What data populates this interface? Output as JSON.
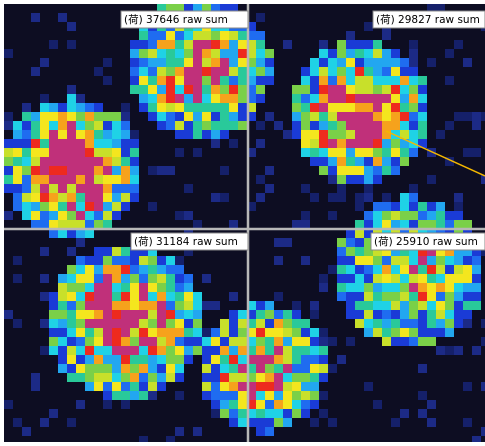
{
  "panels": [
    {
      "label": "(荷) 37646 raw sum"
    },
    {
      "label": "(荷) 29827 raw sum"
    },
    {
      "label": "(荷) 31184 raw sum"
    },
    {
      "label": "(荷) 25910 raw sum"
    }
  ]
}
